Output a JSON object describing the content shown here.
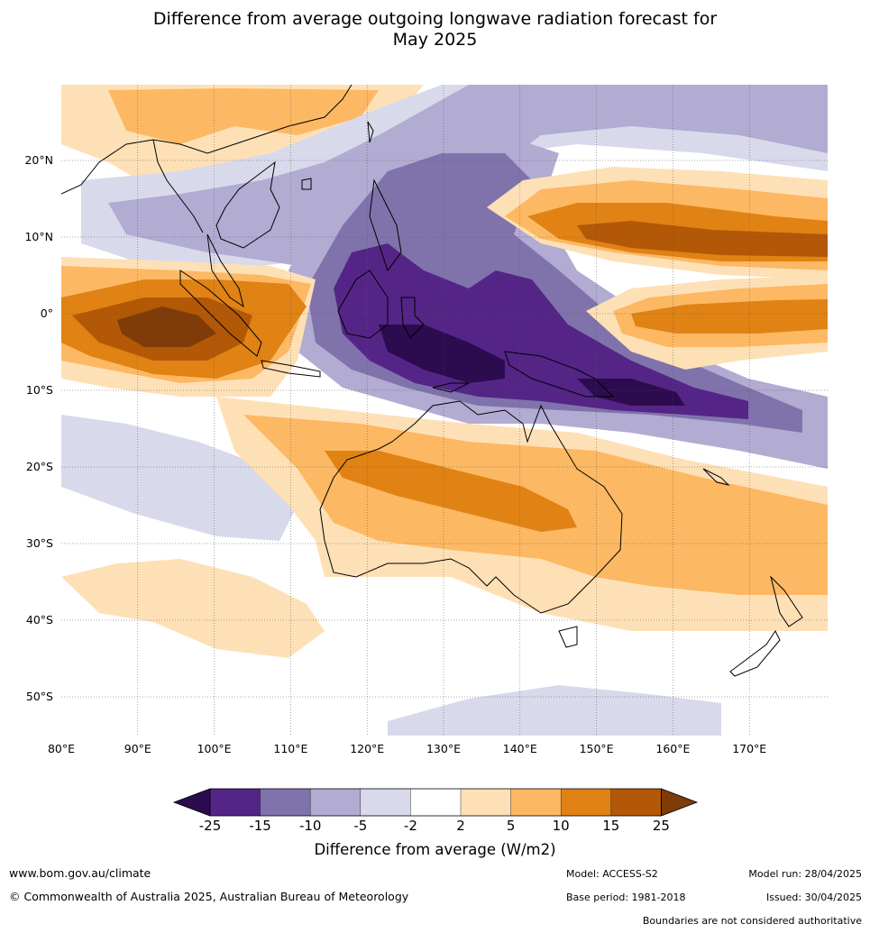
{
  "title": {
    "line1": "Difference from average outgoing longwave radiation forecast for",
    "line2": "May 2025"
  },
  "map": {
    "lon_labels": [
      "80°E",
      "90°E",
      "100°E",
      "110°E",
      "120°E",
      "130°E",
      "140°E",
      "150°E",
      "160°E",
      "170°E"
    ],
    "lat_labels": [
      "20°N",
      "10°N",
      "0°",
      "10°S",
      "20°S",
      "30°S",
      "40°S",
      "50°S"
    ]
  },
  "colorbar": {
    "labels": [
      "-25",
      "-15",
      "-10",
      "-5",
      "-2",
      "2",
      "5",
      "10",
      "15",
      "25"
    ],
    "title": "Difference from average (W/m2)",
    "colors": {
      "lt_-25": "#2d0b4f",
      "-25_-15": "#542586",
      "-15_-10": "#8073ac",
      "-10_-5": "#b2abd2",
      "-5_-2": "#d8daeb",
      "-2_2": "#ffffff",
      "2_5": "#fee0b6",
      "5_10": "#fdb863",
      "10_15": "#e08214",
      "15_25": "#b35806",
      "gt_25": "#7f3b08"
    }
  },
  "footer": {
    "website": "www.bom.gov.au/climate",
    "copyright": "© Commonwealth of Australia 2025, Australian Bureau of Meteorology",
    "model": "Model: ACCESS-S2",
    "base_period": "Base period: 1981-2018",
    "model_run": "Model run: 28/04/2025",
    "issued": "Issued: 30/04/2025",
    "disclaimer": "Boundaries are not considered authoritative"
  }
}
